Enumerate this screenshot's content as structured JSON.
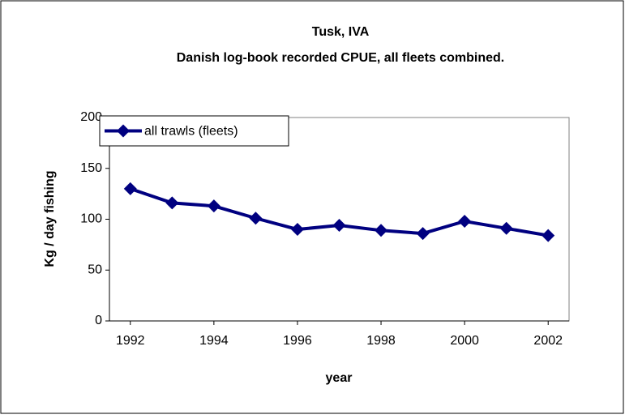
{
  "chart_data": {
    "type": "line",
    "title": "Tusk, IVA",
    "subtitle": "Danish log-book recorded CPUE, all fleets combined.",
    "x_label": "year",
    "y_label": "Kg / day fishing",
    "x": [
      1992,
      1993,
      1994,
      1995,
      1996,
      1997,
      1998,
      1999,
      2000,
      2001,
      2002
    ],
    "series": [
      {
        "name": "all trawls (fleets)",
        "color": "#000080",
        "values": [
          130,
          116,
          113,
          101,
          90,
          94,
          89,
          86,
          98,
          91,
          84
        ]
      }
    ],
    "xlim": [
      1991.5,
      2002.5
    ],
    "xticks": [
      1992,
      1994,
      1996,
      1998,
      2000,
      2002
    ],
    "ylim": [
      0,
      200
    ],
    "yticks": [
      0,
      50,
      100,
      150,
      200
    ],
    "grid": false,
    "legend": "top-left"
  }
}
